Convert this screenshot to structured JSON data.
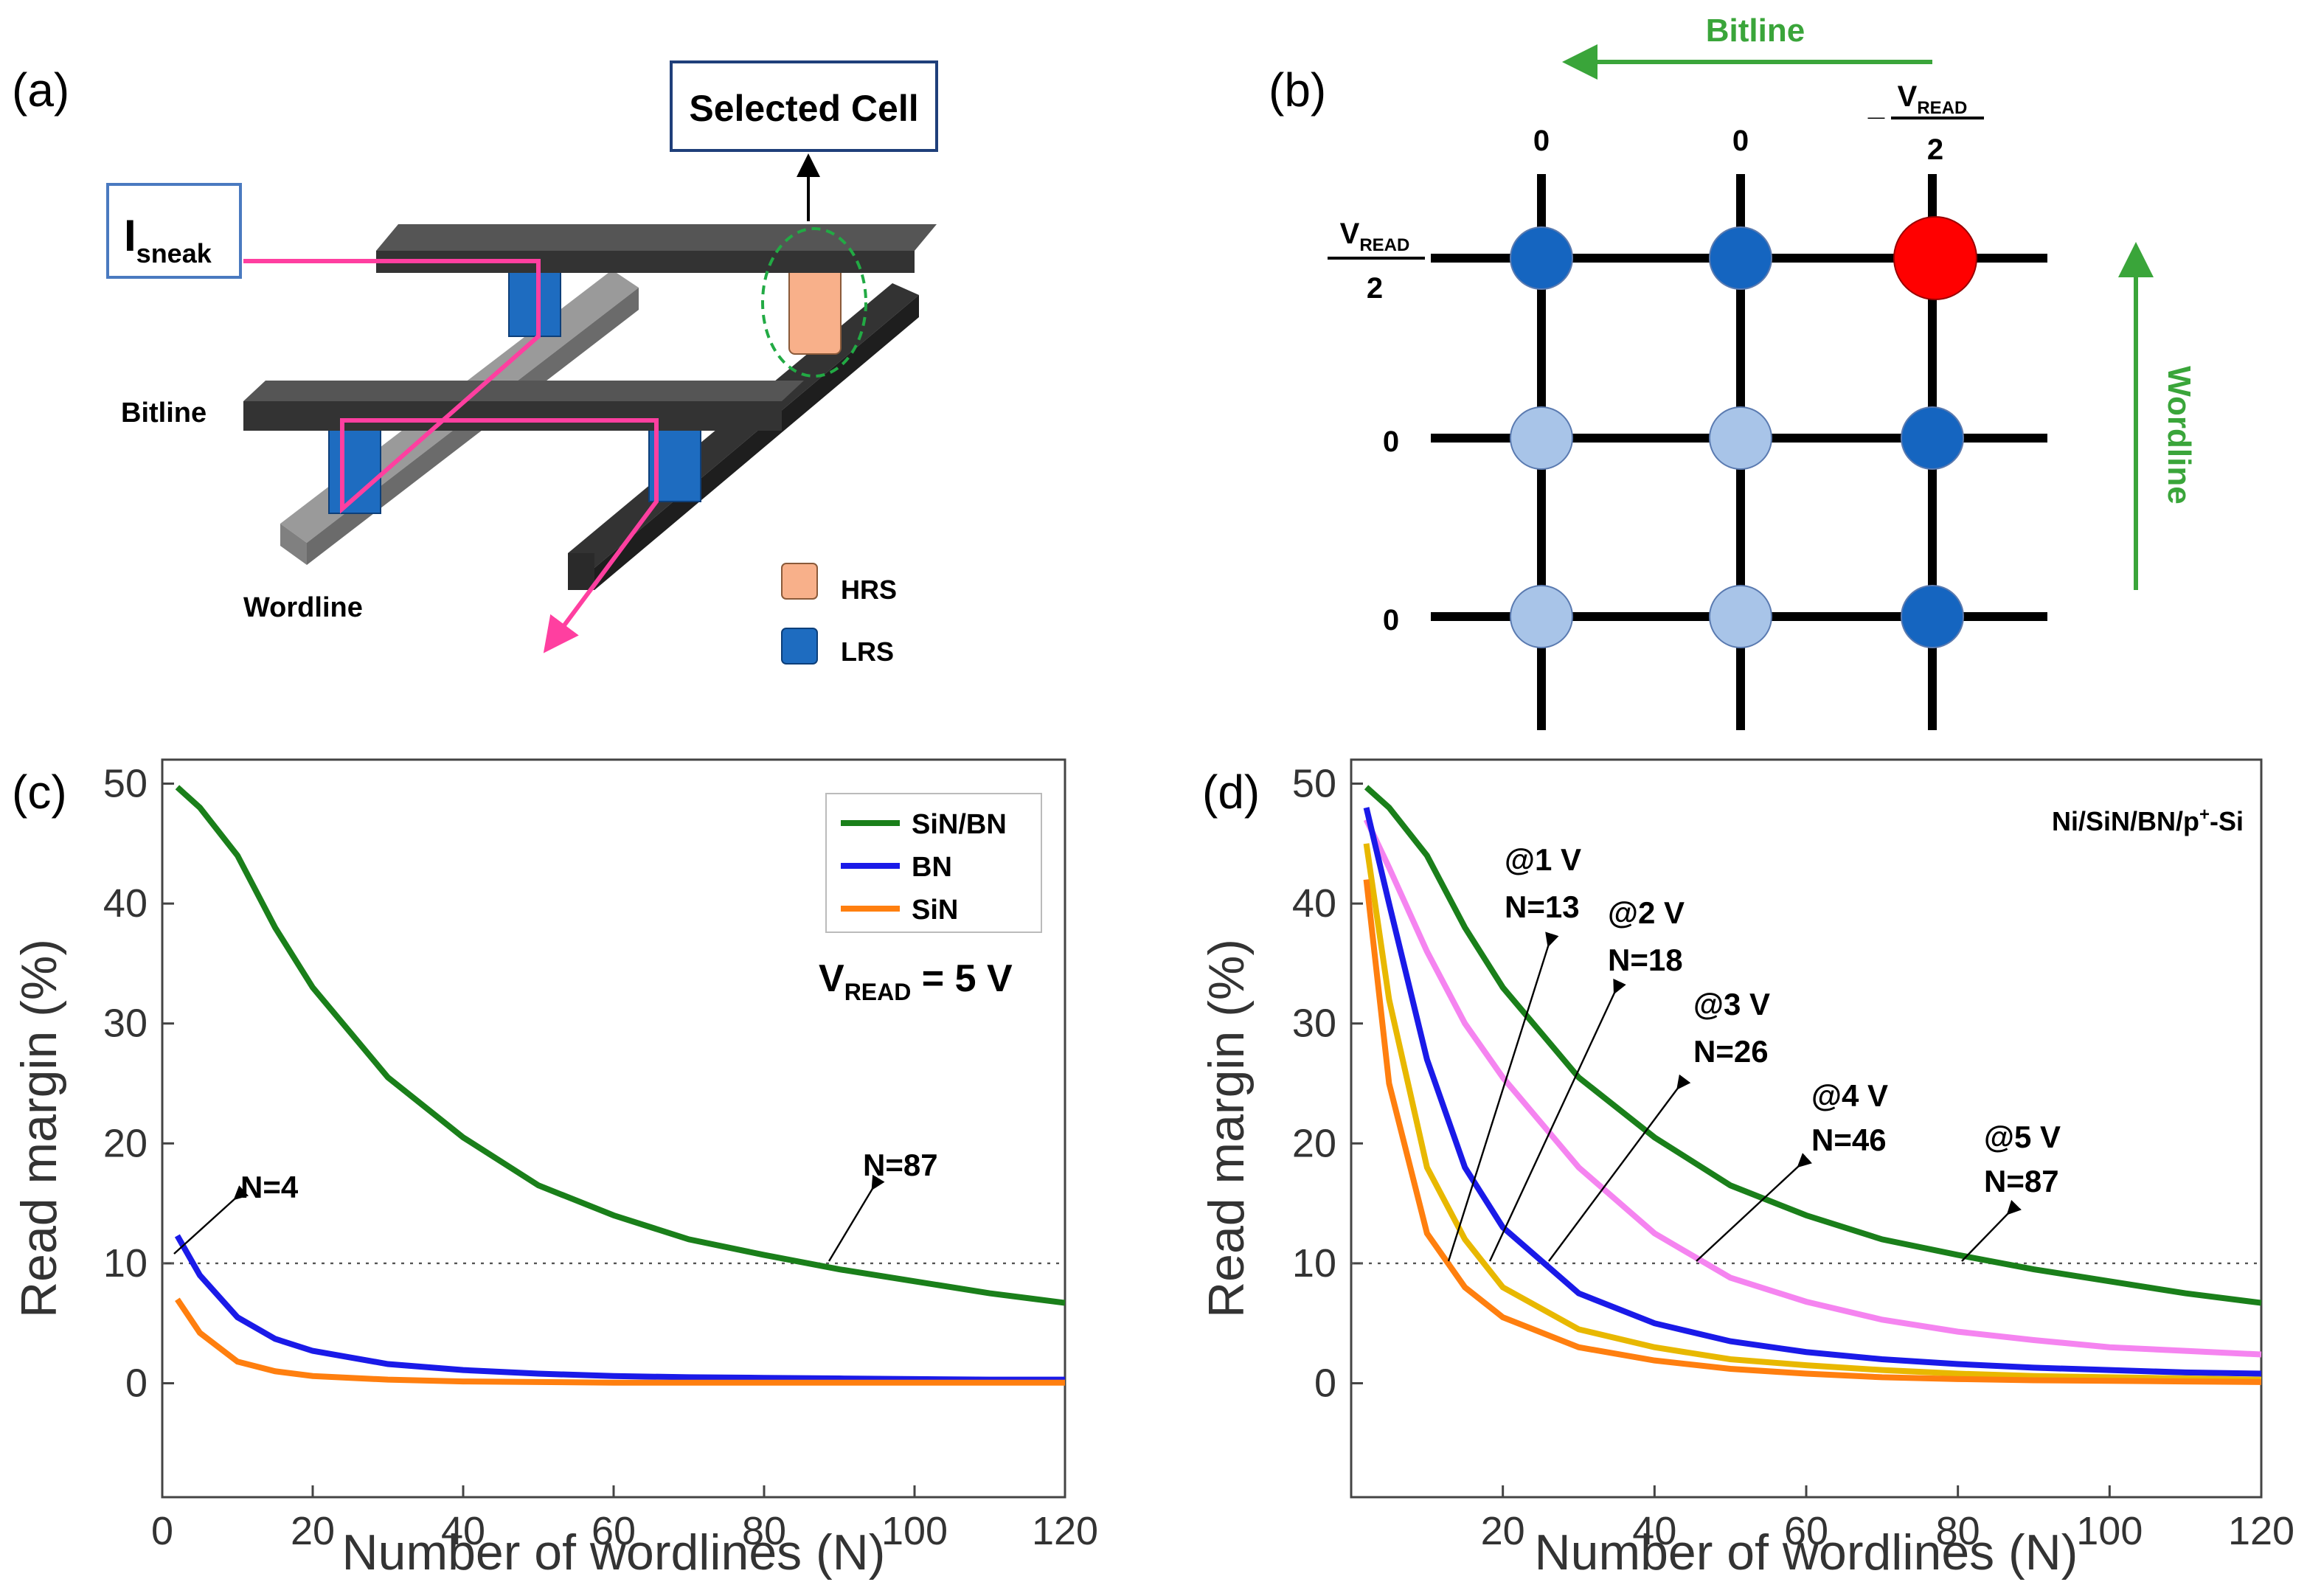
{
  "panel_labels": [
    "(a)",
    "(b)",
    "(c)",
    "(d)"
  ],
  "panel_a": {
    "selected_cell": "Selected Cell",
    "sneak": {
      "main": "I",
      "sub": "sneak"
    },
    "bitline": "Bitline",
    "wordline": "Wordline",
    "legend": [
      "HRS",
      "LRS"
    ]
  },
  "panel_b": {
    "bitline": "Bitline",
    "wordline": "Wordline",
    "column_labels": [
      "0",
      "0"
    ],
    "column_vread": {
      "sign": "_",
      "main": "V",
      "sub": "READ",
      "den": "2"
    },
    "row_vread": {
      "main": "V",
      "sub": "READ",
      "den": "2"
    },
    "row_labels": [
      "0",
      "0"
    ]
  },
  "chart_data": [
    {
      "type": "line",
      "x_label": "Number of wordlines (N)",
      "y_label": "Read margin (%)",
      "x": [
        2,
        5,
        10,
        15,
        20,
        30,
        40,
        50,
        60,
        70,
        80,
        90,
        100,
        110,
        120
      ],
      "series": [
        {
          "name": "SiN/BN",
          "color": "#1a7f1a",
          "values": [
            49.7,
            48,
            44,
            38,
            33,
            25.5,
            20.5,
            16.5,
            14,
            12,
            10.7,
            9.5,
            8.5,
            7.5,
            6.7
          ]
        },
        {
          "name": "BN",
          "color": "#1a1ae8",
          "values": [
            12.3,
            9,
            5.5,
            3.7,
            2.7,
            1.6,
            1.1,
            0.8,
            0.6,
            0.5,
            0.45,
            0.4,
            0.35,
            0.3,
            0.3
          ]
        },
        {
          "name": "SiN",
          "color": "#ff7f0f",
          "values": [
            7,
            4.2,
            1.8,
            1,
            0.6,
            0.3,
            0.15,
            0.1,
            0.05,
            0.05,
            0.05,
            0.05,
            0.05,
            0.05,
            0.05
          ]
        }
      ],
      "xlim": [
        0,
        120
      ],
      "ylim": [
        -9.5,
        52
      ],
      "xticks": [
        0,
        20,
        40,
        60,
        80,
        100,
        120
      ],
      "yticks": [
        0,
        10,
        20,
        30,
        40,
        50
      ],
      "threshold": 10,
      "legend": "upper right",
      "annotations": [
        {
          "text": "N=4"
        },
        {
          "text": "N=87"
        }
      ],
      "condition": {
        "main": "V",
        "sub": "READ",
        "rest": " = 5 V"
      }
    },
    {
      "type": "line",
      "x_label": "Number of wordlines (N)",
      "y_label": "Read margin (%)",
      "header": {
        "pre": "Ni/SiN/BN/p",
        "sup": "+",
        "post": "-Si"
      },
      "x": [
        2,
        5,
        10,
        15,
        20,
        30,
        40,
        50,
        60,
        70,
        80,
        90,
        100,
        110,
        120
      ],
      "series": [
        {
          "name": "@5 V",
          "annotation": "N=87",
          "color": "#1a7f1a",
          "values": [
            49.7,
            48,
            44,
            38,
            33,
            25.5,
            20.5,
            16.5,
            14,
            12,
            10.7,
            9.5,
            8.5,
            7.5,
            6.7
          ]
        },
        {
          "name": "@4 V",
          "annotation": "N=46",
          "color": "#f584f0",
          "values": [
            47,
            43,
            36,
            30,
            25.5,
            18,
            12.5,
            8.8,
            6.8,
            5.3,
            4.3,
            3.6,
            3,
            2.7,
            2.4
          ]
        },
        {
          "name": "@3 V",
          "annotation": "N=26",
          "color": "#1a1ae8",
          "values": [
            48,
            40,
            27,
            18,
            13,
            7.5,
            5,
            3.5,
            2.6,
            2,
            1.6,
            1.3,
            1.1,
            0.9,
            0.8
          ]
        },
        {
          "name": "@2 V",
          "annotation": "N=18",
          "color": "#e8b800",
          "values": [
            45,
            32,
            18,
            12,
            8,
            4.5,
            3,
            2,
            1.5,
            1.1,
            0.8,
            0.6,
            0.5,
            0.4,
            0.3
          ]
        },
        {
          "name": "@1 V",
          "annotation": "N=13",
          "color": "#ff7f0f",
          "values": [
            42,
            25,
            12.5,
            8,
            5.5,
            3,
            1.9,
            1.2,
            0.8,
            0.5,
            0.35,
            0.25,
            0.2,
            0.15,
            0.1
          ]
        }
      ],
      "xlim": [
        0,
        120
      ],
      "ylim": [
        -9.5,
        52
      ],
      "xticks": [
        20,
        40,
        60,
        80,
        100,
        120
      ],
      "yticks": [
        0,
        10,
        20,
        30,
        40,
        50
      ],
      "threshold": 10
    }
  ]
}
